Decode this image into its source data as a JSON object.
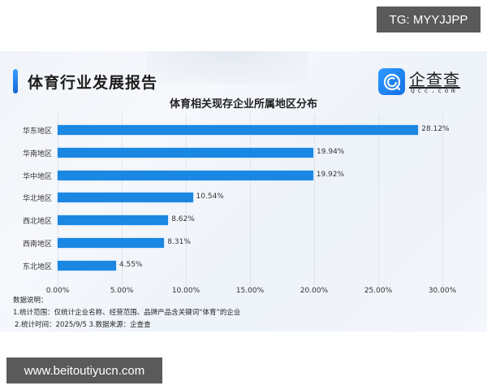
{
  "watermarks": {
    "tg": "TG: MYYJJPP",
    "site": "www.beitoutiyucn.com"
  },
  "report": {
    "title": "体育行业发展报告",
    "accent_color": "#1a87e2"
  },
  "logo": {
    "name_cn": "企查查",
    "name_en": "Qcc.com",
    "icon": "qcc-logo-icon"
  },
  "notes": {
    "heading": "数据说明：",
    "line1": "1.统计范围：仅统计企业名称、经营范围、品牌产品含关键词“体育”的企业",
    "line2": "2.统计时间：2025/9/5  3.数据来源：企查查"
  },
  "chart_data": {
    "type": "bar",
    "orientation": "horizontal",
    "title": "体育相关现存企业所属地区分布",
    "xlabel": "",
    "ylabel": "",
    "categories": [
      "华东地区",
      "华南地区",
      "华中地区",
      "华北地区",
      "西北地区",
      "西南地区",
      "东北地区"
    ],
    "values": [
      28.12,
      19.94,
      19.92,
      10.54,
      8.62,
      8.31,
      4.55
    ],
    "value_labels": [
      "28.12%",
      "19.94%",
      "19.92%",
      "10.54%",
      "8.62%",
      "8.31%",
      "4.55%"
    ],
    "unit": "%",
    "xlim": [
      0,
      30
    ],
    "xticks": [
      "0.00%",
      "5.00%",
      "10.00%",
      "15.00%",
      "20.00%",
      "25.00%",
      "30.00%"
    ],
    "grid": true,
    "legend": null,
    "bar_color": "#1a87e2"
  }
}
